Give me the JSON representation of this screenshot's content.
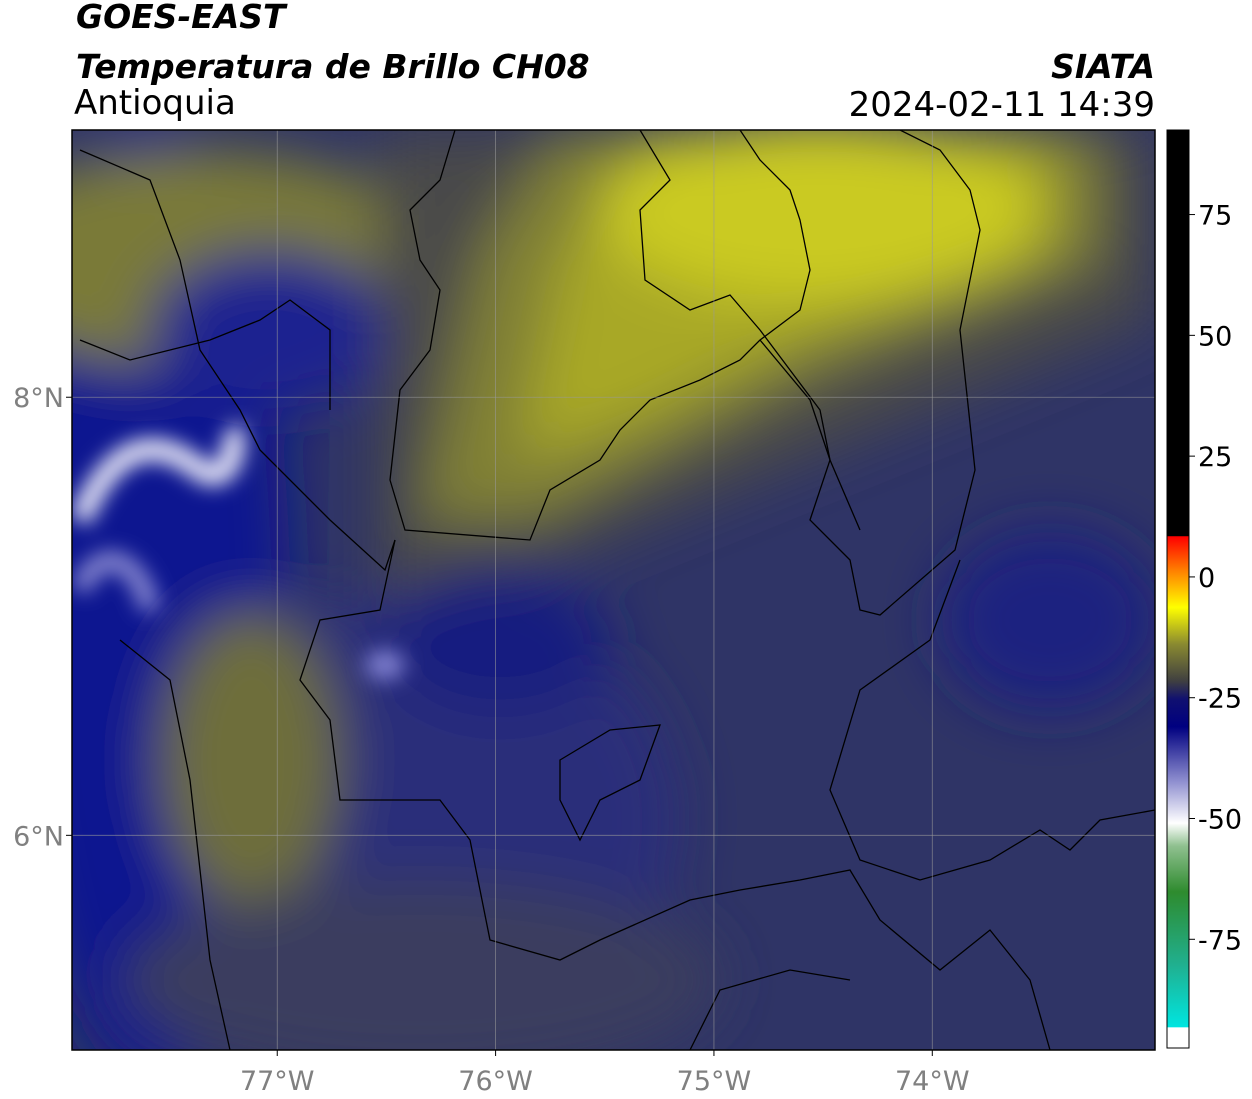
{
  "header": {
    "title": "GOES-EAST",
    "subtitle": "Temperatura de Brillo CH08",
    "region": "Antioquia",
    "source": "SIATA",
    "datetime": "2024-02-11 14:39"
  },
  "map": {
    "xlim": [
      -77.94,
      -72.98
    ],
    "ylim": [
      5.02,
      9.22
    ],
    "xticks": [
      {
        "value": -77,
        "label": "77°W"
      },
      {
        "value": -76,
        "label": "76°W"
      },
      {
        "value": -75,
        "label": "75°W"
      },
      {
        "value": -74,
        "label": "74°W"
      }
    ],
    "yticks": [
      {
        "value": 6,
        "label": "6°N"
      },
      {
        "value": 8,
        "label": "8°N"
      }
    ],
    "grid": true
  },
  "colorbar": {
    "lim": [
      -97.5,
      92.5
    ],
    "ticks": [
      75,
      50,
      25,
      0,
      -25,
      -50,
      -75
    ]
  }
}
